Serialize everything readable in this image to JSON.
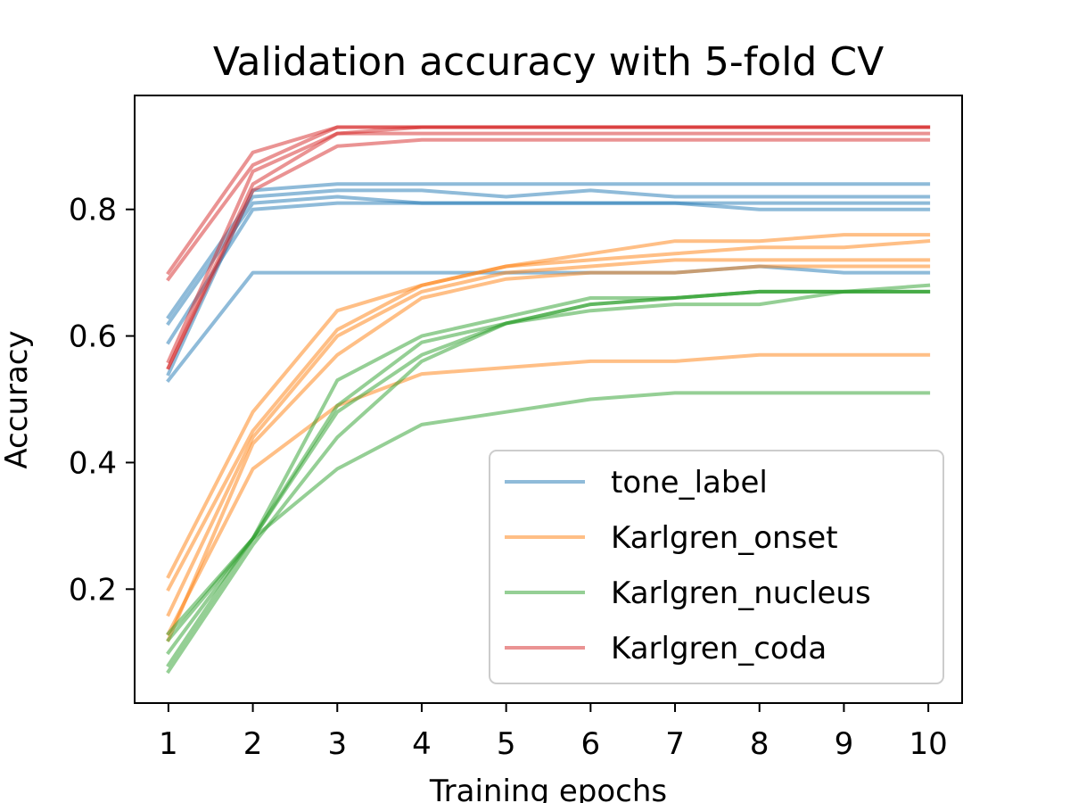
{
  "chart_data": {
    "type": "line",
    "title": "Validation accuracy with 5-fold CV",
    "xlabel": "Training epochs",
    "ylabel": "Accuracy",
    "x": [
      1,
      2,
      3,
      4,
      5,
      6,
      7,
      8,
      9,
      10
    ],
    "xlim": [
      0.6,
      10.4
    ],
    "ylim": [
      0.02,
      0.98
    ],
    "yticks": [
      0.2,
      0.4,
      0.6,
      0.8
    ],
    "grid": false,
    "legend_position": "lower-right",
    "series": [
      {
        "name": "tone_label",
        "color": "#1f77b4",
        "folds": [
          [
            0.53,
            0.7,
            0.7,
            0.7,
            0.7,
            0.7,
            0.7,
            0.71,
            0.7,
            0.7
          ],
          [
            0.59,
            0.8,
            0.81,
            0.81,
            0.81,
            0.81,
            0.81,
            0.8,
            0.8,
            0.8
          ],
          [
            0.62,
            0.81,
            0.82,
            0.81,
            0.81,
            0.81,
            0.81,
            0.81,
            0.81,
            0.81
          ],
          [
            0.63,
            0.82,
            0.83,
            0.83,
            0.82,
            0.83,
            0.82,
            0.82,
            0.82,
            0.82
          ],
          [
            0.54,
            0.83,
            0.84,
            0.84,
            0.84,
            0.84,
            0.84,
            0.84,
            0.84,
            0.84
          ]
        ]
      },
      {
        "name": "Karlgren_onset",
        "color": "#ff7f0e",
        "folds": [
          [
            0.13,
            0.39,
            0.49,
            0.54,
            0.55,
            0.56,
            0.56,
            0.57,
            0.57,
            0.57
          ],
          [
            0.12,
            0.43,
            0.57,
            0.66,
            0.69,
            0.7,
            0.7,
            0.71,
            0.71,
            0.71
          ],
          [
            0.16,
            0.44,
            0.6,
            0.67,
            0.7,
            0.71,
            0.72,
            0.72,
            0.72,
            0.72
          ],
          [
            0.2,
            0.45,
            0.61,
            0.68,
            0.71,
            0.72,
            0.73,
            0.74,
            0.74,
            0.75
          ],
          [
            0.22,
            0.48,
            0.64,
            0.68,
            0.71,
            0.73,
            0.75,
            0.75,
            0.76,
            0.76
          ]
        ]
      },
      {
        "name": "Karlgren_nucleus",
        "color": "#2ca02c",
        "folds": [
          [
            0.12,
            0.28,
            0.39,
            0.46,
            0.48,
            0.5,
            0.51,
            0.51,
            0.51,
            0.51
          ],
          [
            0.07,
            0.27,
            0.44,
            0.56,
            0.62,
            0.64,
            0.65,
            0.65,
            0.67,
            0.67
          ],
          [
            0.08,
            0.28,
            0.48,
            0.57,
            0.62,
            0.65,
            0.66,
            0.67,
            0.67,
            0.67
          ],
          [
            0.1,
            0.28,
            0.49,
            0.59,
            0.62,
            0.65,
            0.66,
            0.67,
            0.67,
            0.68
          ],
          [
            0.13,
            0.28,
            0.53,
            0.6,
            0.63,
            0.66,
            0.66,
            0.67,
            0.67,
            0.67
          ]
        ]
      },
      {
        "name": "Karlgren_coda",
        "color": "#d62728",
        "folds": [
          [
            0.55,
            0.83,
            0.9,
            0.91,
            0.91,
            0.91,
            0.91,
            0.91,
            0.91,
            0.91
          ],
          [
            0.55,
            0.84,
            0.92,
            0.92,
            0.92,
            0.92,
            0.92,
            0.92,
            0.92,
            0.92
          ],
          [
            0.56,
            0.86,
            0.92,
            0.93,
            0.93,
            0.93,
            0.93,
            0.93,
            0.93,
            0.93
          ],
          [
            0.69,
            0.87,
            0.93,
            0.93,
            0.93,
            0.93,
            0.93,
            0.93,
            0.93,
            0.93
          ],
          [
            0.7,
            0.89,
            0.93,
            0.93,
            0.93,
            0.93,
            0.93,
            0.93,
            0.93,
            0.93
          ]
        ]
      }
    ]
  }
}
